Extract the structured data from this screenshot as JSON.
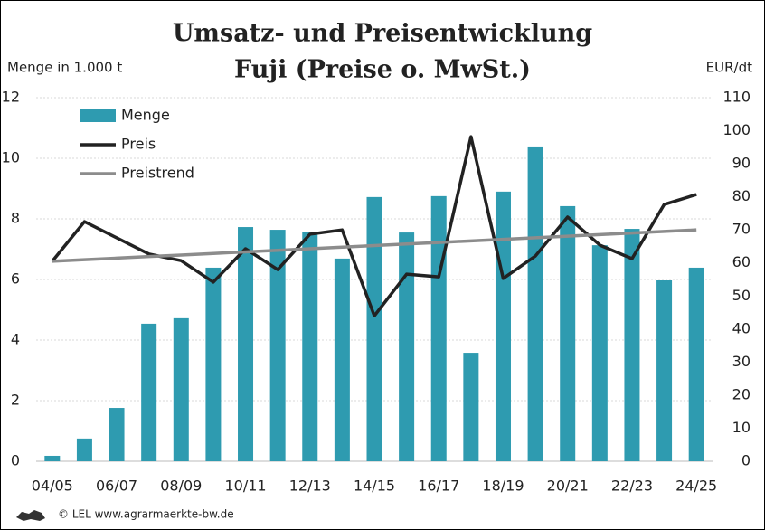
{
  "chart_data": {
    "type": "bar_line",
    "title": "Umsatz- und Preisentwicklung",
    "subtitle": "Fuji (Preise o. MwSt.)",
    "y_label": "Menge in 1.000 t",
    "y2_label": "EUR/dt",
    "footer": "© LEL www.agrarmaerkte-bw.de",
    "categories": [
      "04/05",
      null,
      "06/07",
      null,
      "08/09",
      null,
      "10/11",
      null,
      "12/13",
      null,
      "14/15",
      null,
      "16/17",
      null,
      "18/19",
      null,
      "20/21",
      null,
      "22/23",
      null,
      "24/25"
    ],
    "series": [
      {
        "name": "Menge",
        "kind": "bar",
        "color": "#2e9bb0",
        "values": [
          0.18,
          0.75,
          1.76,
          4.54,
          4.72,
          6.39,
          7.73,
          7.64,
          7.58,
          6.69,
          8.72,
          7.55,
          8.75,
          3.58,
          8.9,
          10.39,
          8.42,
          7.13,
          7.67,
          5.97,
          6.39
        ]
      },
      {
        "name": "Preis",
        "kind": "line",
        "axis": "y2",
        "color": "#222222",
        "values": [
          60.5,
          72.5,
          67.6,
          62.7,
          60.7,
          54.2,
          64.3,
          58.0,
          68.7,
          70.0,
          44.0,
          56.6,
          55.8,
          98.2,
          55.3,
          62.1,
          73.9,
          65.4,
          61.3,
          77.7,
          80.7
        ]
      },
      {
        "name": "Preistrend",
        "kind": "line",
        "axis": "y2",
        "color": "#8c8c8c",
        "values": [
          60.5,
          60.98,
          61.45,
          61.93,
          62.4,
          62.88,
          63.35,
          63.83,
          64.3,
          64.78,
          65.25,
          65.73,
          66.2,
          66.68,
          67.15,
          67.63,
          68.1,
          68.58,
          69.05,
          69.53,
          70.0
        ]
      }
    ],
    "ylim": [
      0,
      12
    ],
    "yticks": [
      0,
      2,
      4,
      6,
      8,
      10,
      12
    ],
    "y2lim": [
      0,
      110
    ],
    "y2ticks": [
      0,
      10,
      20,
      30,
      40,
      50,
      60,
      70,
      80,
      90,
      100,
      110
    ],
    "grid": true,
    "legend": "upper left"
  }
}
